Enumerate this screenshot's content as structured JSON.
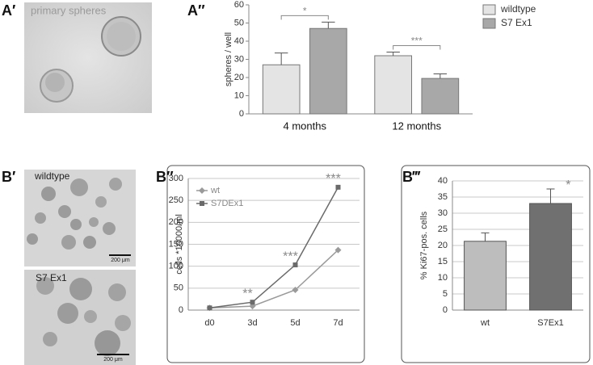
{
  "panels": {
    "labels": [
      "A′",
      "A″",
      "B′",
      "B″",
      "B‴"
    ]
  },
  "images": {
    "a_caption": "primary spheres",
    "b_top_caption": "wildtype",
    "b_top_scale": "200 μm",
    "b_bottom_caption": "S7 Ex1",
    "b_bottom_scale": "200 μm"
  },
  "chart_data": [
    {
      "type": "bar",
      "ylabel": "spheres / well",
      "categories": [
        "4 months",
        "12 months"
      ],
      "series": [
        {
          "name": "wildtype",
          "color": "#e4e4e4",
          "values": [
            27,
            32
          ],
          "errors": [
            6.5,
            2
          ]
        },
        {
          "name": "S7 Ex1",
          "color": "#a8a8a8",
          "values": [
            47,
            19.5
          ],
          "errors": [
            3.5,
            2.5
          ]
        }
      ],
      "annotations": [
        "*",
        "***"
      ],
      "ylim": [
        0,
        60
      ],
      "yticks": [
        0,
        10,
        20,
        30,
        40,
        50,
        60
      ],
      "grid": false,
      "legend": "right"
    },
    {
      "type": "line",
      "ylabel": "cells *10000/ml",
      "categories": [
        "d0",
        "3d",
        "5d",
        "7d"
      ],
      "series": [
        {
          "name": "wt",
          "color": "#9a9a9a",
          "marker": "diamond",
          "values": [
            5,
            9,
            46,
            137
          ]
        },
        {
          "name": "S7DEx1",
          "color": "#6a6a6a",
          "marker": "square",
          "values": [
            5,
            18,
            103,
            280
          ]
        }
      ],
      "annotations": [
        null,
        "**",
        "***",
        "***"
      ],
      "ylim": [
        0,
        300
      ],
      "yticks": [
        0,
        50,
        100,
        150,
        200,
        250,
        300
      ],
      "grid": true,
      "legend": "top left"
    },
    {
      "type": "bar",
      "ylabel": "% Ki67-pos. cells",
      "categories": [
        "wt",
        "S7Ex1"
      ],
      "values": [
        21.3,
        33
      ],
      "errors": [
        2.6,
        4.5
      ],
      "colors": [
        "#bdbdbd",
        "#707070"
      ],
      "annotations": [
        null,
        "*"
      ],
      "ylim": [
        0,
        40
      ],
      "yticks": [
        0,
        5,
        10,
        15,
        20,
        25,
        30,
        35,
        40
      ],
      "grid": true
    }
  ]
}
